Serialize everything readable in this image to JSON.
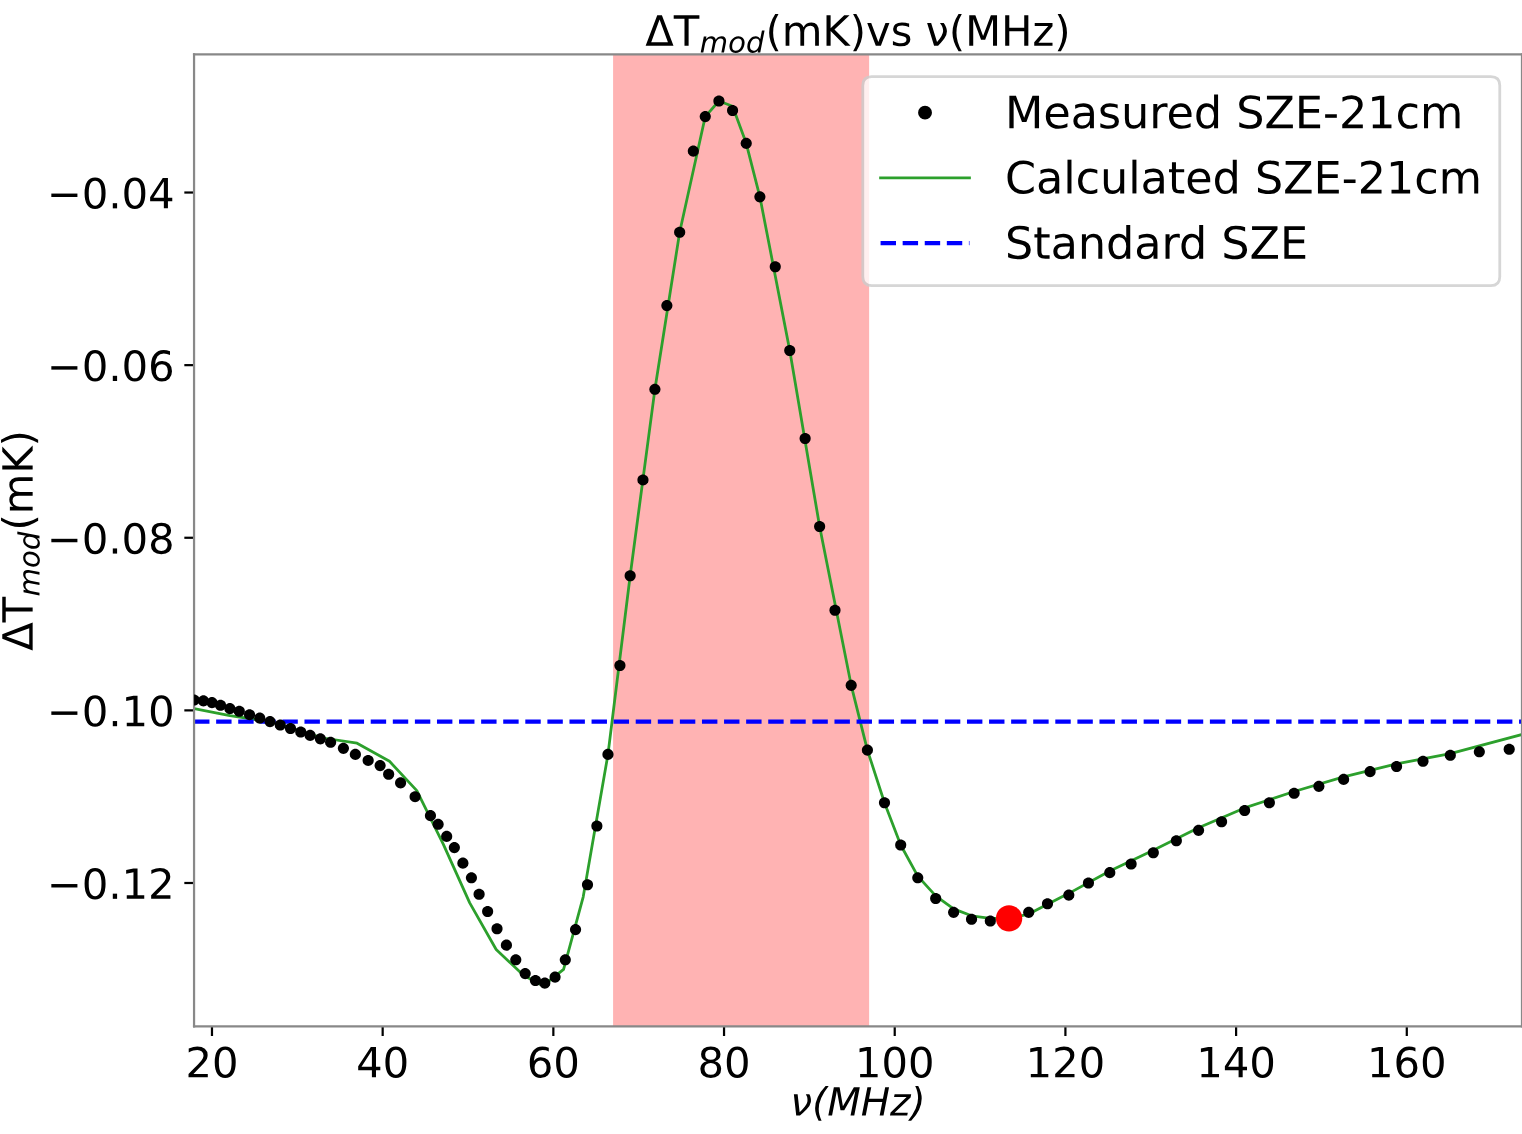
{
  "chart_data": {
    "type": "scatter",
    "title": "ΔT$_{mod}$(mK)vs ν(MHz)",
    "xlabel": "ν(MHz)",
    "ylabel": "ΔT$_{mod}$(mK)",
    "xlim": [
      17.9,
      173.5
    ],
    "ylim": [
      -0.1366,
      -0.024
    ],
    "xticks": [
      20,
      40,
      60,
      80,
      100,
      120,
      140,
      160
    ],
    "yticks": [
      {
        "value": -0.12,
        "label": "−0.12"
      },
      {
        "value": -0.1,
        "label": "−0.10"
      },
      {
        "value": -0.08,
        "label": "−0.08"
      },
      {
        "value": -0.06,
        "label": "−0.06"
      },
      {
        "value": -0.04,
        "label": "−0.04"
      }
    ],
    "grid": false,
    "legend": "top right",
    "bands": [
      {
        "axis": "x",
        "from": 67,
        "to": 97,
        "color": "#ffb3b3"
      }
    ],
    "series": [
      {
        "name": "Measured SZE-21cm",
        "color": "#000000",
        "marker": "circle",
        "x": [
          17.9,
          19.0,
          20.0,
          21.0,
          22.1,
          23.2,
          24.4,
          25.6,
          26.8,
          28.0,
          29.2,
          30.4,
          31.5,
          32.7,
          33.9,
          35.4,
          36.8,
          38.3,
          39.7,
          40.7,
          42.1,
          43.8,
          45.6,
          46.5,
          47.5,
          48.4,
          49.4,
          50.4,
          51.3,
          52.3,
          53.4,
          54.5,
          55.6,
          56.7,
          57.9,
          59.0,
          60.2,
          61.4,
          62.6,
          64.0,
          65.1,
          66.4,
          67.8,
          69.0,
          70.5,
          71.9,
          73.3,
          74.8,
          76.4,
          77.8,
          79.4,
          81.0,
          82.6,
          84.2,
          86.0,
          87.7,
          89.5,
          91.2,
          93.0,
          94.9,
          96.8,
          98.8,
          100.7,
          102.7,
          104.8,
          106.9,
          109.0,
          111.2,
          115.7,
          117.9,
          120.4,
          122.7,
          125.2,
          127.7,
          130.3,
          133.0,
          135.6,
          138.3,
          141.0,
          143.9,
          146.8,
          149.7,
          152.6,
          155.7,
          158.8,
          161.9,
          165.1,
          168.5,
          172.0
        ],
        "values": [
          -0.0988,
          -0.0989,
          -0.0991,
          -0.0994,
          -0.0998,
          -0.1001,
          -0.1005,
          -0.1009,
          -0.1013,
          -0.1017,
          -0.1021,
          -0.1025,
          -0.1029,
          -0.1033,
          -0.1037,
          -0.1044,
          -0.1051,
          -0.1058,
          -0.1064,
          -0.1074,
          -0.1084,
          -0.11,
          -0.1122,
          -0.1132,
          -0.1146,
          -0.1159,
          -0.1177,
          -0.1194,
          -0.1213,
          -0.1233,
          -0.1253,
          -0.1272,
          -0.1289,
          -0.1305,
          -0.1313,
          -0.1316,
          -0.1309,
          -0.1289,
          -0.1254,
          -0.1202,
          -0.1134,
          -0.1051,
          -0.0948,
          -0.0844,
          -0.0733,
          -0.0628,
          -0.0531,
          -0.0446,
          -0.0352,
          -0.0312,
          -0.0294,
          -0.0305,
          -0.0343,
          -0.0405,
          -0.0486,
          -0.0583,
          -0.0685,
          -0.0787,
          -0.0884,
          -0.0971,
          -0.1046,
          -0.1107,
          -0.1156,
          -0.1194,
          -0.1218,
          -0.1234,
          -0.1242,
          -0.1244,
          -0.1234,
          -0.1224,
          -0.1214,
          -0.12,
          -0.1188,
          -0.1178,
          -0.1165,
          -0.1151,
          -0.1139,
          -0.1129,
          -0.1116,
          -0.1107,
          -0.1096,
          -0.1088,
          -0.108,
          -0.1071,
          -0.1065,
          -0.1059,
          -0.1052,
          -0.1048,
          -0.1045
        ]
      },
      {
        "name": "Calculated SZE-21cm",
        "type": "line",
        "color": "#2ca02c",
        "line_style": "solid",
        "x": [
          17.9,
          22.1,
          26.8,
          33.0,
          37.0,
          40.8,
          44.0,
          47.1,
          50.2,
          53.3,
          56.5,
          58.8,
          61.2,
          63.5,
          66.4,
          69.0,
          71.9,
          74.8,
          77.8,
          79.4,
          81.0,
          82.6,
          84.2,
          87.7,
          91.2,
          94.9,
          96.8,
          98.8,
          100.7,
          102.7,
          104.8,
          106.9,
          109.0,
          111.2,
          113.4,
          115.7,
          120.4,
          125.2,
          130.3,
          135.6,
          141.0,
          146.8,
          152.6,
          158.8,
          165.1,
          173.5
        ],
        "values": [
          -0.0998,
          -0.1006,
          -0.1013,
          -0.1032,
          -0.1038,
          -0.1059,
          -0.1093,
          -0.1155,
          -0.1223,
          -0.1277,
          -0.1307,
          -0.1319,
          -0.13,
          -0.1216,
          -0.1051,
          -0.0844,
          -0.0628,
          -0.0446,
          -0.0312,
          -0.0294,
          -0.03,
          -0.0343,
          -0.0405,
          -0.0583,
          -0.0787,
          -0.0971,
          -0.1046,
          -0.1107,
          -0.1156,
          -0.1192,
          -0.1215,
          -0.123,
          -0.1238,
          -0.1241,
          -0.1241,
          -0.1236,
          -0.1212,
          -0.1186,
          -0.1162,
          -0.1136,
          -0.1113,
          -0.1094,
          -0.1077,
          -0.1062,
          -0.105,
          -0.1028
        ]
      },
      {
        "name": "Standard SZE",
        "type": "line",
        "color": "#0000ff",
        "line_style": "dashed",
        "x": [
          17.9,
          173.5
        ],
        "values": [
          -0.1013,
          -0.1013
        ]
      },
      {
        "type": "bubble",
        "color": "#ff0000",
        "marker": "circle",
        "sizes": [
          1
        ],
        "x": [
          113.4
        ],
        "values": [
          -0.1241
        ]
      }
    ]
  }
}
